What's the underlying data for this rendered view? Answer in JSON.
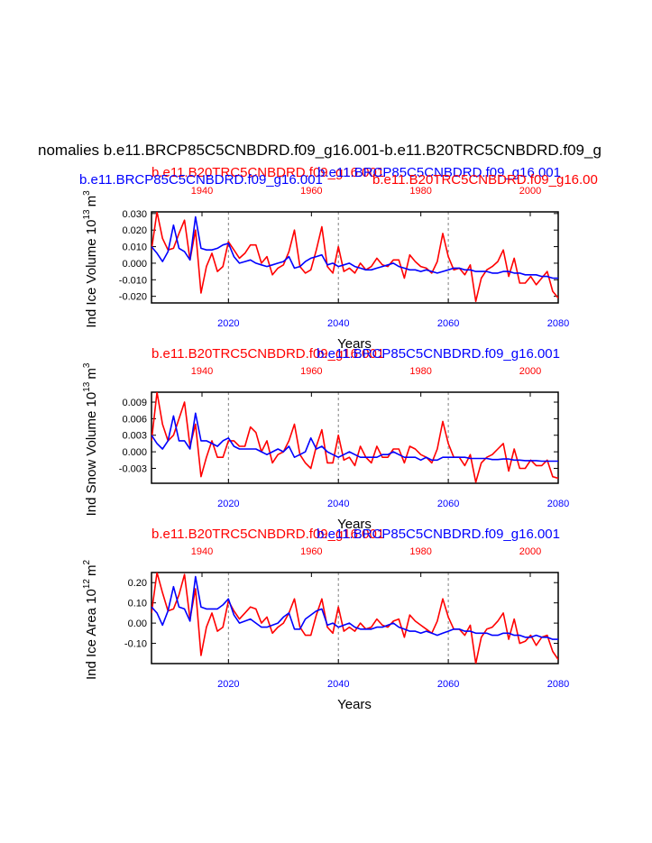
{
  "page": {
    "main_title": "nomalies b.e11.BRCP85C5CNBDRD.f09_g16.001-b.e11.B20TRC5CNBDRD.f09_g"
  },
  "colors": {
    "series_a": "#ff0000",
    "series_b": "#0000ff",
    "axis": "#000000",
    "grid": "#808080"
  },
  "labels": {
    "red_case": "b.e11.B20TRC5CNBDRD.f09_g16.001",
    "red_case_right": "b.e11.B20TRC5CNBDRD.f09_g16.00",
    "blue_case": "b.e11.BRCP85C5CNBDRD.f09_g16.001"
  },
  "chart_data": [
    {
      "type": "line",
      "name": "ice-volume",
      "title_lines": [
        {
          "text": "b.e11.B20TRC5CNBDRD.f09_g16.001",
          "color": "#ff0000",
          "anchor": "start",
          "pos": "top-left"
        },
        {
          "text": "b.e11.BRCP85C5CNBDRD.f09_g16.001",
          "color": "#0000ff",
          "anchor": "end",
          "pos": "top-center"
        },
        {
          "text": "b.e11.BRCP85C5CNBDRD.f09_g16.001",
          "color": "#0000ff",
          "anchor": "start",
          "pos": "bottom-left"
        },
        {
          "text": "b.e11.B20TRC5CNBDRD.f09_g16.00",
          "color": "#ff0000",
          "anchor": "start",
          "pos": "bottom-right"
        }
      ],
      "ylabel": "Ind Ice Volume 10",
      "ylabel_exp": "13",
      "ylabel_unit": "m",
      "ylabel_unit_exp": "3",
      "xlabel": "Years",
      "xlim": [
        2006,
        2080
      ],
      "ylim": [
        -0.024,
        0.031
      ],
      "yticks": [
        -0.02,
        -0.01,
        0.0,
        0.01,
        0.02,
        0.03
      ],
      "ytick_labels": [
        "-0.020",
        "-0.010",
        "0.000",
        "0.010",
        "0.020",
        "0.030"
      ],
      "xticks_bottom": [
        2020,
        2040,
        2060,
        2080
      ],
      "xticks_top": [
        1940,
        1960,
        1980,
        2000
      ],
      "vlines": [
        2020,
        2040,
        2060
      ],
      "x": [
        2006,
        2007,
        2008,
        2009,
        2010,
        2011,
        2012,
        2013,
        2014,
        2015,
        2016,
        2017,
        2018,
        2019,
        2020,
        2021,
        2022,
        2023,
        2024,
        2025,
        2026,
        2027,
        2028,
        2029,
        2030,
        2031,
        2032,
        2033,
        2034,
        2035,
        2036,
        2037,
        2038,
        2039,
        2040,
        2041,
        2042,
        2043,
        2044,
        2045,
        2046,
        2047,
        2048,
        2049,
        2050,
        2051,
        2052,
        2053,
        2054,
        2055,
        2056,
        2057,
        2058,
        2059,
        2060,
        2061,
        2062,
        2063,
        2064,
        2065,
        2066,
        2067,
        2068,
        2069,
        2070,
        2071,
        2072,
        2073,
        2074,
        2075,
        2076,
        2077,
        2078,
        2079,
        2080
      ],
      "series": [
        {
          "name": "b.e11.B20TRC5CNBDRD.f09_g16.001",
          "color": "#ff0000",
          "values": [
            0.008,
            0.031,
            0.015,
            0.008,
            0.009,
            0.018,
            0.026,
            0.002,
            0.02,
            -0.018,
            -0.002,
            0.006,
            -0.005,
            -0.002,
            0.013,
            0.008,
            0.003,
            0.006,
            0.011,
            0.011,
            0.0,
            0.004,
            -0.007,
            -0.003,
            -0.001,
            0.007,
            0.02,
            -0.002,
            -0.006,
            -0.004,
            0.008,
            0.022,
            -0.002,
            -0.006,
            0.01,
            -0.005,
            -0.003,
            -0.006,
            0.0,
            -0.004,
            -0.002,
            0.003,
            -0.001,
            -0.002,
            0.002,
            0.002,
            -0.009,
            0.005,
            0.001,
            -0.002,
            -0.003,
            -0.006,
            0.001,
            0.018,
            0.004,
            -0.004,
            -0.003,
            -0.007,
            -0.001,
            -0.023,
            -0.009,
            -0.004,
            -0.002,
            0.001,
            0.008,
            -0.008,
            0.003,
            -0.012,
            -0.012,
            -0.008,
            -0.013,
            -0.009,
            -0.005,
            -0.017,
            -0.021
          ]
        },
        {
          "name": "b.e11.BRCP85C5CNBDRD.f09_g16.001",
          "color": "#0000ff",
          "values": [
            0.01,
            0.006,
            0.001,
            0.007,
            0.023,
            0.009,
            0.007,
            0.002,
            0.028,
            0.009,
            0.008,
            0.008,
            0.009,
            0.011,
            0.012,
            0.004,
            0.0,
            0.001,
            0.002,
            0.0,
            -0.001,
            -0.002,
            -0.001,
            0.0,
            0.001,
            0.004,
            -0.003,
            -0.002,
            0.001,
            0.003,
            0.004,
            0.005,
            -0.001,
            0.0,
            -0.002,
            -0.001,
            0.0,
            -0.002,
            -0.003,
            -0.004,
            -0.004,
            -0.003,
            -0.002,
            -0.001,
            0.0,
            -0.002,
            -0.003,
            -0.004,
            -0.004,
            -0.005,
            -0.004,
            -0.005,
            -0.006,
            -0.005,
            -0.004,
            -0.003,
            -0.003,
            -0.004,
            -0.004,
            -0.005,
            -0.005,
            -0.005,
            -0.006,
            -0.006,
            -0.005,
            -0.005,
            -0.006,
            -0.006,
            -0.007,
            -0.007,
            -0.007,
            -0.008,
            -0.008,
            -0.009,
            -0.009
          ]
        }
      ]
    },
    {
      "type": "line",
      "name": "snow-volume",
      "title_lines": [
        {
          "text": "b.e11.B20TRC5CNBDRD.f09_g16.001",
          "color": "#ff0000",
          "anchor": "start",
          "pos": "left"
        },
        {
          "text": "b.e11.BRCP85C5CNBDRD.f09_g16.001",
          "color": "#0000ff",
          "anchor": "end",
          "pos": "right"
        }
      ],
      "ylabel": "Ind Snow Volume 10",
      "ylabel_exp": "13",
      "ylabel_unit": "m",
      "ylabel_unit_exp": "3",
      "xlabel": "Years",
      "xlim": [
        2006,
        2080
      ],
      "ylim": [
        -0.0057,
        0.0108
      ],
      "yticks": [
        -0.003,
        0.0,
        0.003,
        0.006,
        0.009
      ],
      "ytick_labels": [
        "-0.003",
        "0.000",
        "0.003",
        "0.006",
        "0.009"
      ],
      "xticks_bottom": [
        2020,
        2040,
        2060,
        2080
      ],
      "xticks_top": [
        1940,
        1960,
        1980,
        2000
      ],
      "vlines": [
        2020,
        2040,
        2060
      ],
      "x": [
        2006,
        2007,
        2008,
        2009,
        2010,
        2011,
        2012,
        2013,
        2014,
        2015,
        2016,
        2017,
        2018,
        2019,
        2020,
        2021,
        2022,
        2023,
        2024,
        2025,
        2026,
        2027,
        2028,
        2029,
        2030,
        2031,
        2032,
        2033,
        2034,
        2035,
        2036,
        2037,
        2038,
        2039,
        2040,
        2041,
        2042,
        2043,
        2044,
        2045,
        2046,
        2047,
        2048,
        2049,
        2050,
        2051,
        2052,
        2053,
        2054,
        2055,
        2056,
        2057,
        2058,
        2059,
        2060,
        2061,
        2062,
        2063,
        2064,
        2065,
        2066,
        2067,
        2068,
        2069,
        2070,
        2071,
        2072,
        2073,
        2074,
        2075,
        2076,
        2077,
        2078,
        2079,
        2080
      ],
      "series": [
        {
          "name": "b.e11.B20TRC5CNBDRD.f09_g16.001",
          "color": "#ff0000",
          "values": [
            0.002,
            0.0108,
            0.005,
            0.002,
            0.003,
            0.006,
            0.009,
            0.001,
            0.005,
            -0.0045,
            -0.001,
            0.002,
            -0.001,
            -0.001,
            0.002,
            0.002,
            0.001,
            0.001,
            0.0045,
            0.0035,
            0.0,
            0.002,
            -0.002,
            -0.0005,
            0.0,
            0.002,
            0.005,
            -0.0005,
            -0.002,
            -0.003,
            0.001,
            0.004,
            -0.002,
            -0.002,
            0.003,
            -0.0015,
            -0.001,
            -0.0025,
            0.001,
            -0.001,
            -0.002,
            0.001,
            -0.001,
            -0.001,
            0.0005,
            0.0005,
            -0.002,
            0.001,
            0.0005,
            -0.0005,
            -0.001,
            -0.002,
            0.0005,
            0.0055,
            0.0015,
            -0.001,
            -0.001,
            -0.0025,
            -0.0005,
            -0.0055,
            -0.002,
            -0.001,
            -0.0005,
            0.0005,
            0.0015,
            -0.0035,
            0.0005,
            -0.003,
            -0.003,
            -0.0015,
            -0.0025,
            -0.0025,
            -0.0015,
            -0.0045,
            -0.0048
          ]
        },
        {
          "name": "b.e11.BRCP85C5CNBDRD.f09_g16.001",
          "color": "#0000ff",
          "values": [
            0.003,
            0.0015,
            0.0005,
            0.002,
            0.0065,
            0.002,
            0.002,
            0.0005,
            0.007,
            0.002,
            0.002,
            0.0015,
            0.001,
            0.002,
            0.0025,
            0.001,
            0.0005,
            0.0005,
            0.0005,
            0.0005,
            0.0,
            -0.0005,
            0.0,
            0.0005,
            0.0,
            0.001,
            -0.001,
            -0.0005,
            0.0,
            0.0025,
            0.0005,
            0.001,
            0.0,
            -0.0005,
            -0.001,
            -0.0005,
            0.0,
            -0.0005,
            -0.001,
            -0.001,
            -0.001,
            -0.001,
            -0.0005,
            -0.0005,
            0.0,
            -0.0005,
            -0.001,
            -0.001,
            -0.001,
            -0.0015,
            -0.001,
            -0.0015,
            -0.0015,
            -0.001,
            -0.001,
            -0.001,
            -0.001,
            -0.001,
            -0.0012,
            -0.0012,
            -0.0012,
            -0.0012,
            -0.0014,
            -0.0014,
            -0.0013,
            -0.0013,
            -0.0015,
            -0.0015,
            -0.0016,
            -0.0016,
            -0.0016,
            -0.0017,
            -0.0017,
            -0.0017,
            -0.0017
          ]
        }
      ]
    },
    {
      "type": "line",
      "name": "ice-area",
      "title_lines": [
        {
          "text": "b.e11.B20TRC5CNBDRD.f09_g16.001",
          "color": "#ff0000",
          "anchor": "start",
          "pos": "left"
        },
        {
          "text": "b.e11.BRCP85C5CNBDRD.f09_g16.001",
          "color": "#0000ff",
          "anchor": "end",
          "pos": "right"
        }
      ],
      "ylabel": "Ind Ice Area 10",
      "ylabel_exp": "12",
      "ylabel_unit": "m",
      "ylabel_unit_exp": "2",
      "xlabel": "Years",
      "xlim": [
        2006,
        2080
      ],
      "ylim": [
        -0.2,
        0.25
      ],
      "yticks": [
        -0.1,
        0.0,
        0.1,
        0.2
      ],
      "ytick_labels": [
        "-0.10",
        "0.00",
        "0.10",
        "0.20"
      ],
      "xticks_bottom": [
        2020,
        2040,
        2060,
        2080
      ],
      "xticks_top": [
        1940,
        1960,
        1980,
        2000
      ],
      "vlines": [
        2020,
        2040,
        2060
      ],
      "x": [
        2006,
        2007,
        2008,
        2009,
        2010,
        2011,
        2012,
        2013,
        2014,
        2015,
        2016,
        2017,
        2018,
        2019,
        2020,
        2021,
        2022,
        2023,
        2024,
        2025,
        2026,
        2027,
        2028,
        2029,
        2030,
        2031,
        2032,
        2033,
        2034,
        2035,
        2036,
        2037,
        2038,
        2039,
        2040,
        2041,
        2042,
        2043,
        2044,
        2045,
        2046,
        2047,
        2048,
        2049,
        2050,
        2051,
        2052,
        2053,
        2054,
        2055,
        2056,
        2057,
        2058,
        2059,
        2060,
        2061,
        2062,
        2063,
        2064,
        2065,
        2066,
        2067,
        2068,
        2069,
        2070,
        2071,
        2072,
        2073,
        2074,
        2075,
        2076,
        2077,
        2078,
        2079,
        2080
      ],
      "series": [
        {
          "name": "b.e11.B20TRC5CNBDRD.f09_g16.001",
          "color": "#ff0000",
          "values": [
            0.05,
            0.25,
            0.15,
            0.06,
            0.07,
            0.14,
            0.24,
            0.02,
            0.17,
            -0.16,
            -0.02,
            0.05,
            -0.04,
            -0.02,
            0.11,
            0.06,
            0.02,
            0.05,
            0.08,
            0.07,
            0.0,
            0.03,
            -0.05,
            -0.02,
            0.0,
            0.05,
            0.12,
            -0.02,
            -0.06,
            -0.06,
            0.04,
            0.12,
            -0.02,
            -0.05,
            0.08,
            -0.04,
            -0.02,
            -0.04,
            0.0,
            -0.03,
            -0.02,
            0.02,
            -0.01,
            -0.02,
            0.01,
            0.02,
            -0.07,
            0.04,
            0.01,
            -0.01,
            -0.03,
            -0.05,
            0.01,
            0.12,
            0.03,
            -0.03,
            -0.03,
            -0.06,
            -0.01,
            -0.2,
            -0.07,
            -0.03,
            -0.02,
            0.01,
            0.05,
            -0.08,
            0.02,
            -0.1,
            -0.09,
            -0.06,
            -0.11,
            -0.07,
            -0.06,
            -0.14,
            -0.18
          ]
        },
        {
          "name": "b.e11.BRCP85C5CNBDRD.f09_g16.001",
          "color": "#0000ff",
          "values": [
            0.08,
            0.05,
            -0.01,
            0.06,
            0.18,
            0.08,
            0.07,
            0.01,
            0.23,
            0.08,
            0.07,
            0.07,
            0.07,
            0.09,
            0.12,
            0.04,
            0.0,
            0.01,
            0.02,
            0.0,
            -0.02,
            -0.02,
            -0.01,
            0.0,
            0.03,
            0.05,
            -0.03,
            -0.03,
            0.02,
            0.04,
            0.06,
            0.07,
            -0.01,
            0.0,
            -0.02,
            -0.01,
            0.0,
            -0.02,
            -0.03,
            -0.03,
            -0.03,
            -0.02,
            -0.02,
            -0.01,
            0.0,
            -0.02,
            -0.03,
            -0.04,
            -0.04,
            -0.05,
            -0.04,
            -0.05,
            -0.06,
            -0.05,
            -0.04,
            -0.03,
            -0.03,
            -0.04,
            -0.04,
            -0.05,
            -0.05,
            -0.05,
            -0.06,
            -0.06,
            -0.05,
            -0.05,
            -0.06,
            -0.06,
            -0.07,
            -0.07,
            -0.06,
            -0.07,
            -0.07,
            -0.08,
            -0.08
          ]
        }
      ]
    }
  ]
}
